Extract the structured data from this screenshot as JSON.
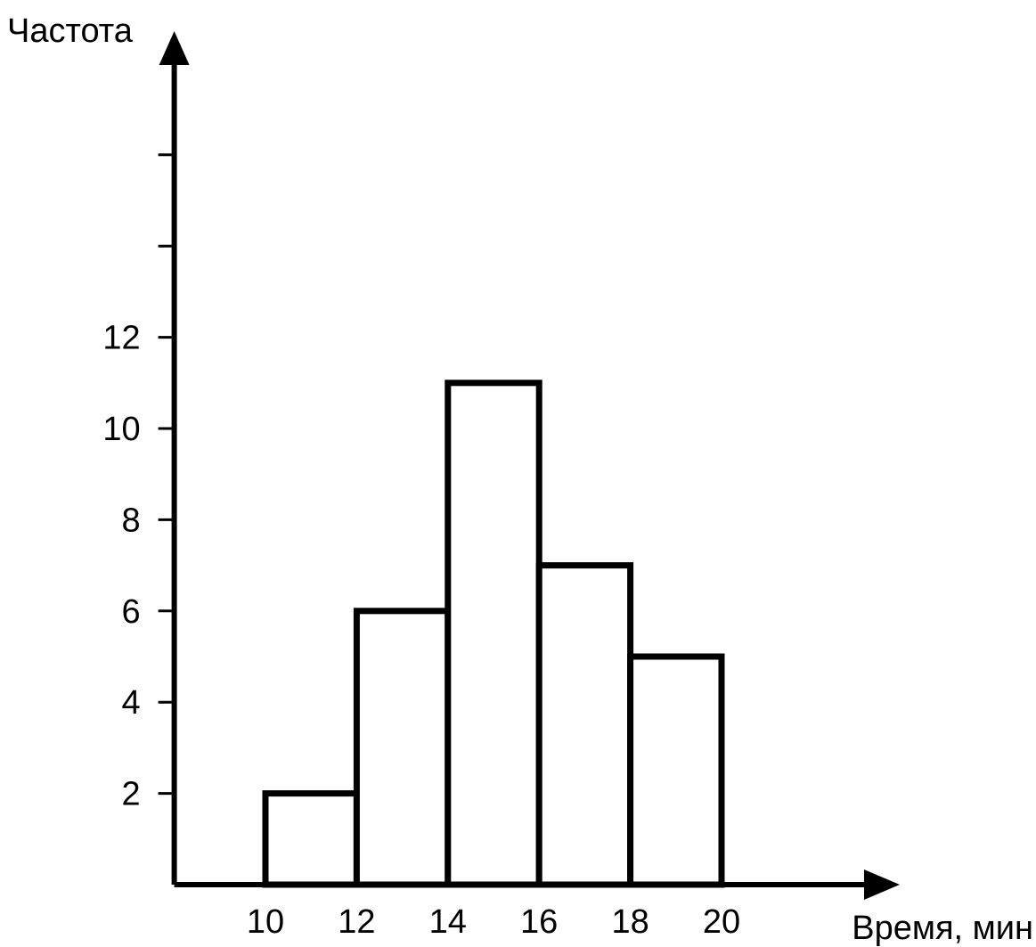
{
  "chart_data": {
    "type": "bar",
    "style": "histogram",
    "ylabel": "Частота",
    "xlabel": "Время, мин",
    "bins": [
      {
        "from": 10,
        "to": 12,
        "value": 2
      },
      {
        "from": 12,
        "to": 14,
        "value": 6
      },
      {
        "from": 14,
        "to": 16,
        "value": 11
      },
      {
        "from": 16,
        "to": 18,
        "value": 7
      },
      {
        "from": 18,
        "to": 20,
        "value": 5
      }
    ],
    "x_ticks": [
      10,
      12,
      14,
      16,
      18,
      20
    ],
    "x_tick_labels": [
      "10",
      "12",
      "14",
      "16",
      "18",
      "20"
    ],
    "y_ticks": [
      2,
      4,
      6,
      8,
      10,
      12,
      14,
      16
    ],
    "y_tick_labels": [
      "2",
      "4",
      "6",
      "8",
      "10",
      "12",
      "",
      ""
    ],
    "xlim": [
      8,
      24
    ],
    "ylim": [
      0,
      18
    ],
    "grid": false,
    "legend": "none",
    "colors": {
      "stroke": "#000000",
      "fill": "#ffffff"
    }
  }
}
